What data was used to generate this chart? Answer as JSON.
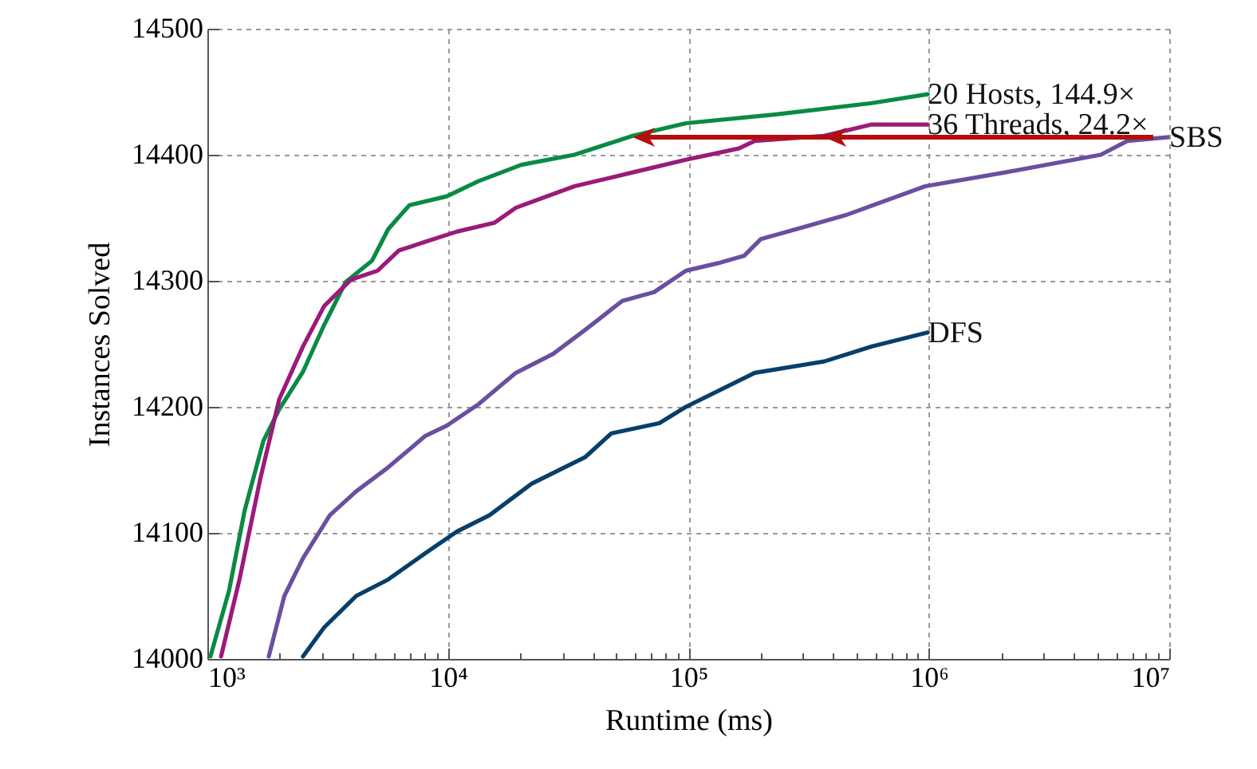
{
  "chart_data": {
    "type": "line",
    "xlabel": "Runtime (ms)",
    "ylabel": "Instances Solved",
    "log": "x",
    "grid": true,
    "xlim": [
      1000,
      10000000
    ],
    "ylim": [
      14000,
      14500
    ],
    "xticks": [
      {
        "value": 1000,
        "label": "10³"
      },
      {
        "value": 2000,
        "label": null
      },
      {
        "value": 3000,
        "label": null
      },
      {
        "value": 4000,
        "label": null
      },
      {
        "value": 5000,
        "label": null
      },
      {
        "value": 6000,
        "label": null
      },
      {
        "value": 7000,
        "label": null
      },
      {
        "value": 8000,
        "label": null
      },
      {
        "value": 9000,
        "label": null
      },
      {
        "value": 10000,
        "label": "10⁴"
      },
      {
        "value": 20000,
        "label": null
      },
      {
        "value": 30000,
        "label": null
      },
      {
        "value": 40000,
        "label": null
      },
      {
        "value": 50000,
        "label": null
      },
      {
        "value": 60000,
        "label": null
      },
      {
        "value": 70000,
        "label": null
      },
      {
        "value": 80000,
        "label": null
      },
      {
        "value": 90000,
        "label": null
      },
      {
        "value": 100000,
        "label": "10⁵"
      },
      {
        "value": 200000,
        "label": null
      },
      {
        "value": 300000,
        "label": null
      },
      {
        "value": 400000,
        "label": null
      },
      {
        "value": 500000,
        "label": null
      },
      {
        "value": 600000,
        "label": null
      },
      {
        "value": 700000,
        "label": null
      },
      {
        "value": 800000,
        "label": null
      },
      {
        "value": 900000,
        "label": null
      },
      {
        "value": 1000000,
        "label": "10⁶"
      },
      {
        "value": 2000000,
        "label": null
      },
      {
        "value": 3000000,
        "label": null
      },
      {
        "value": 4000000,
        "label": null
      },
      {
        "value": 5000000,
        "label": null
      },
      {
        "value": 6000000,
        "label": null
      },
      {
        "value": 7000000,
        "label": null
      },
      {
        "value": 8000000,
        "label": null
      },
      {
        "value": 9000000,
        "label": null
      },
      {
        "value": 10000000,
        "label": "10⁷"
      }
    ],
    "yticks": [
      14000,
      14100,
      14200,
      14300,
      14400,
      14500
    ],
    "series": [
      {
        "name": "20 Hosts, 144.9×",
        "color": "#0a8a45",
        "x": [
          1030,
          1230,
          1430,
          1710,
          1990,
          2500,
          3060,
          3760,
          4840,
          5650,
          6920,
          9890,
          13400,
          20200,
          33600,
          58700,
          97700,
          232000,
          580000,
          990000
        ],
        "values": [
          14002,
          14054,
          14118,
          14173,
          14198,
          14228,
          14265,
          14299,
          14316,
          14341,
          14360,
          14367,
          14379,
          14392,
          14400,
          14415,
          14425,
          14432,
          14441,
          14448
        ]
      },
      {
        "name": "36 Threads, 24.2×",
        "color": "#9b1a7a",
        "x": [
          1140,
          1360,
          1660,
          1990,
          2500,
          3060,
          3960,
          5100,
          6250,
          8070,
          10900,
          15600,
          19200,
          33600,
          58700,
          97700,
          162000,
          189000,
          367000,
          580000,
          990000
        ],
        "values": [
          14002,
          14063,
          14143,
          14206,
          14248,
          14280,
          14301,
          14308,
          14324,
          14331,
          14339,
          14346,
          14358,
          14375,
          14386,
          14396,
          14405,
          14411,
          14415,
          14424,
          14424
        ]
      },
      {
        "name": "SBS",
        "color": "#6a4fa0",
        "x": [
          1800,
          2090,
          2500,
          3230,
          4160,
          5650,
          8070,
          9890,
          13400,
          19200,
          27400,
          37200,
          53100,
          72000,
          97700,
          133000,
          171000,
          200000,
          450000,
          966000,
          2080000,
          5190000,
          6700000,
          10000000
        ],
        "values": [
          14002,
          14050,
          14080,
          14114,
          14133,
          14152,
          14177,
          14185,
          14202,
          14227,
          14242,
          14261,
          14284,
          14291,
          14308,
          14314,
          14320,
          14333,
          14352,
          14375,
          14386,
          14400,
          14411,
          14414
        ]
      },
      {
        "name": "DFS",
        "color": "#073f6a",
        "x": [
          2500,
          3060,
          4160,
          5650,
          8070,
          10900,
          14900,
          22300,
          37200,
          47900,
          75700,
          97700,
          189000,
          367000,
          580000,
          990000
        ],
        "values": [
          14002,
          14025,
          14050,
          14063,
          14084,
          14101,
          14114,
          14139,
          14160,
          14179,
          14187,
          14200,
          14227,
          14236,
          14248,
          14259
        ]
      }
    ]
  }
}
